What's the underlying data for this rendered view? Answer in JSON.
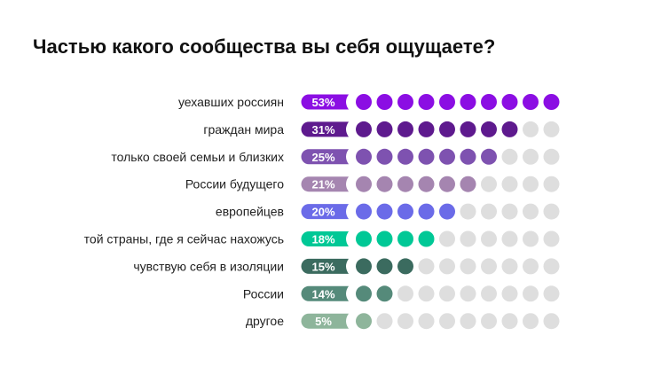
{
  "chart_data": {
    "type": "dot",
    "title": "Частью какого сообщества вы себя ощущаете?",
    "dots_total": 10,
    "empty_color": "#DEDEDE",
    "rows": [
      {
        "label": "уехавших россиян",
        "value_label": "53%",
        "value": 53,
        "dots": 10,
        "color": "#8B0EE3"
      },
      {
        "label": "граждан мира",
        "value_label": "31%",
        "value": 31,
        "dots": 8,
        "color": "#5E1A8E"
      },
      {
        "label": "только своей семьи и близких",
        "value_label": "25%",
        "value": 25,
        "dots": 7,
        "color": "#7E52B0"
      },
      {
        "label": "России будущего",
        "value_label": "21%",
        "value": 21,
        "dots": 6,
        "color": "#A585B0"
      },
      {
        "label": "европейцев",
        "value_label": "20%",
        "value": 20,
        "dots": 5,
        "color": "#6B6BE8"
      },
      {
        "label": "той страны, где я сейчас нахожусь",
        "value_label": "18%",
        "value": 18,
        "dots": 4,
        "color": "#00C896"
      },
      {
        "label": "чувствую себя в изоляции",
        "value_label": "15%",
        "value": 15,
        "dots": 3,
        "color": "#3B6B5F"
      },
      {
        "label": "России",
        "value_label": "14%",
        "value": 14,
        "dots": 2,
        "color": "#558A7A"
      },
      {
        "label": "другое",
        "value_label": "5%",
        "value": 5,
        "dots": 1,
        "color": "#8EB59B"
      }
    ]
  }
}
